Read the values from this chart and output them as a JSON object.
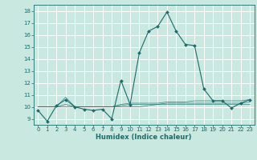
{
  "title": "",
  "xlabel": "Humidex (Indice chaleur)",
  "xlim": [
    -0.5,
    23.5
  ],
  "ylim": [
    8.5,
    18.5
  ],
  "yticks": [
    9,
    10,
    11,
    12,
    13,
    14,
    15,
    16,
    17,
    18
  ],
  "xticks": [
    0,
    1,
    2,
    3,
    4,
    5,
    6,
    7,
    8,
    9,
    10,
    11,
    12,
    13,
    14,
    15,
    16,
    17,
    18,
    19,
    20,
    21,
    22,
    23
  ],
  "bg_color": "#c8e8e0",
  "grid_color": "#ffffff",
  "line_color": "#1a6b6b",
  "lines": [
    [
      9.7,
      8.8,
      10.1,
      10.6,
      10.0,
      9.8,
      9.7,
      9.8,
      9.0,
      12.2,
      10.2,
      14.5,
      16.3,
      16.7,
      17.9,
      16.3,
      15.2,
      15.1,
      11.5,
      10.5,
      10.5,
      9.9,
      10.3,
      10.6
    ],
    [
      10.0,
      10.0,
      10.0,
      10.8,
      10.0,
      10.0,
      10.0,
      10.0,
      10.0,
      10.2,
      10.3,
      10.3,
      10.3,
      10.3,
      10.4,
      10.4,
      10.4,
      10.5,
      10.5,
      10.5,
      10.5,
      10.5,
      10.5,
      10.6
    ],
    [
      10.0,
      10.0,
      10.0,
      10.0,
      10.0,
      10.0,
      10.0,
      10.0,
      10.0,
      10.0,
      10.0,
      10.0,
      10.1,
      10.2,
      10.2,
      10.2,
      10.2,
      10.2,
      10.2,
      10.2,
      10.2,
      10.2,
      10.2,
      10.2
    ],
    [
      10.0,
      10.0,
      10.0,
      10.2,
      10.0,
      10.0,
      10.0,
      10.0,
      10.0,
      10.1,
      10.2,
      10.2,
      10.2,
      10.2,
      10.3,
      10.3,
      10.3,
      10.3,
      10.3,
      10.3,
      10.3,
      10.3,
      10.3,
      10.4
    ]
  ],
  "marker_indices": [
    0,
    1,
    2,
    3,
    4,
    5,
    6,
    7,
    8,
    9,
    10,
    11,
    12,
    13,
    14,
    15,
    16,
    17,
    18,
    19,
    20,
    21,
    22,
    23
  ]
}
